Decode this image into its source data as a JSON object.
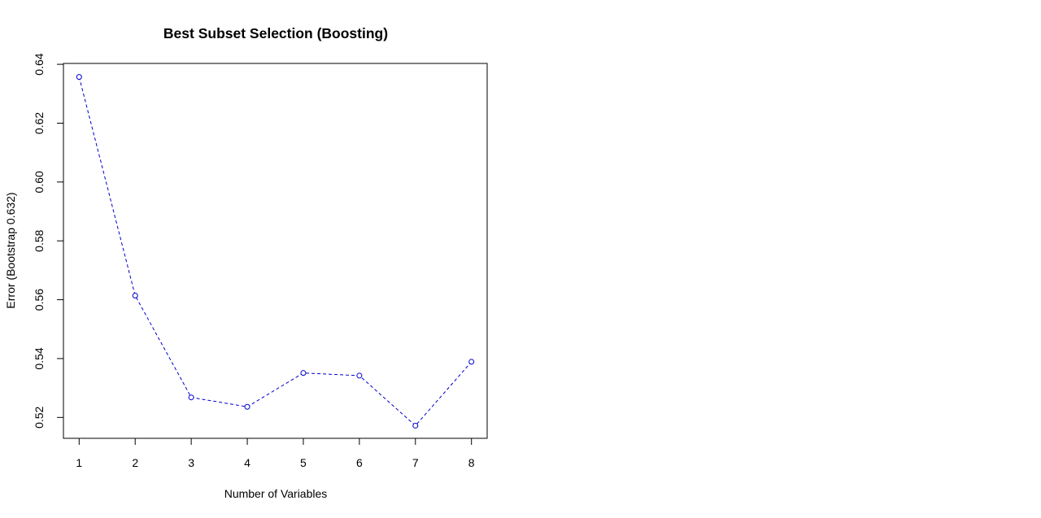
{
  "chart_data": {
    "type": "line",
    "title": "Best Subset Selection (Boosting)",
    "xlabel": "Number of Variables",
    "ylabel": "Error (Bootstrap 0.632)",
    "x": [
      1,
      2,
      3,
      4,
      5,
      6,
      7,
      8
    ],
    "xticks": [
      "1",
      "2",
      "3",
      "4",
      "5",
      "6",
      "7",
      "8"
    ],
    "yticks": [
      "0.52",
      "0.54",
      "0.56",
      "0.58",
      "0.60",
      "0.62",
      "0.64"
    ],
    "ytick_values": [
      0.52,
      0.54,
      0.56,
      0.58,
      0.6,
      0.62,
      0.64
    ],
    "xlim": [
      0.72,
      8.28
    ],
    "ylim": [
      0.5129,
      0.6403
    ],
    "series": [
      {
        "values": [
          0.6357,
          0.5614,
          0.5268,
          0.5236,
          0.5351,
          0.5342,
          0.5172,
          0.5389
        ],
        "color": "#0000cc",
        "line_style": "dashed",
        "marker": "open-circle"
      }
    ],
    "grid": false,
    "legend": "none"
  }
}
